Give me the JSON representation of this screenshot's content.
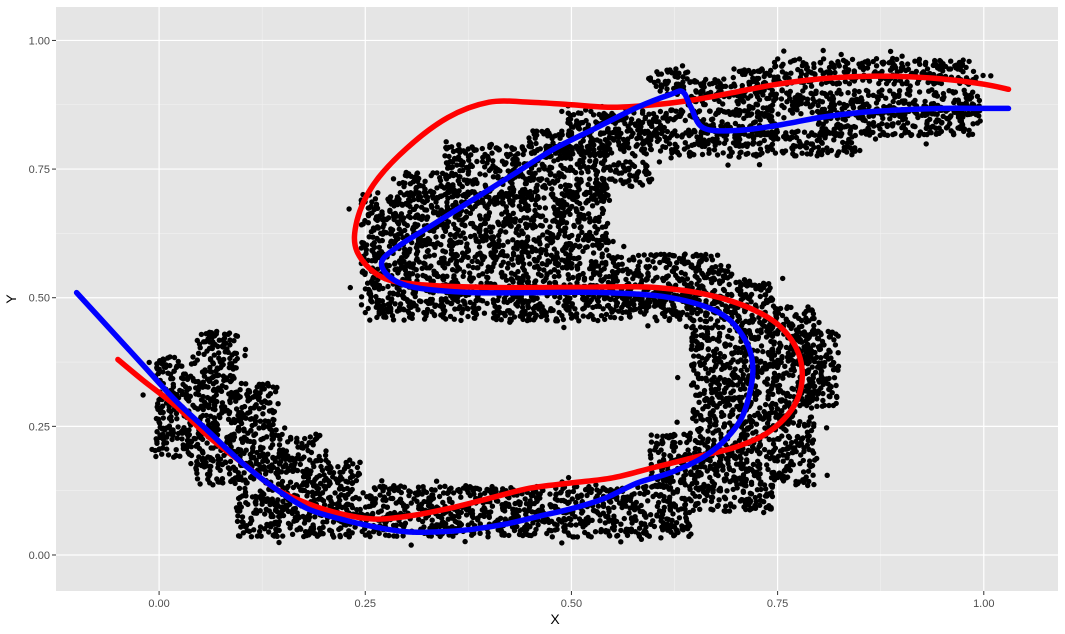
{
  "chart_data": {
    "type": "scatter",
    "title": "",
    "xlabel": "X",
    "ylabel": "Y",
    "xlim": [
      -0.125,
      1.09
    ],
    "ylim": [
      -0.07,
      1.065
    ],
    "x_ticks": [
      0.0,
      0.25,
      0.5,
      0.75,
      1.0
    ],
    "x_tick_labels": [
      "0.00",
      "0.25",
      "0.50",
      "0.75",
      "1.00"
    ],
    "y_ticks": [
      0.0,
      0.25,
      0.5,
      0.75,
      1.0
    ],
    "y_tick_labels": [
      "0.00",
      "0.25",
      "0.50",
      "0.75",
      "1.00"
    ],
    "grid": true,
    "legend": "none",
    "points": {
      "name": "",
      "color": "#000000",
      "description_cells": "jittered point clusters on a 0.05 grid tracing an S shape",
      "cells": [
        [
          0.62,
          0.92
        ],
        [
          0.67,
          0.9
        ],
        [
          0.72,
          0.92
        ],
        [
          0.77,
          0.94
        ],
        [
          0.82,
          0.94
        ],
        [
          0.87,
          0.94
        ],
        [
          0.92,
          0.94
        ],
        [
          0.97,
          0.94
        ],
        [
          0.72,
          0.88
        ],
        [
          0.77,
          0.88
        ],
        [
          0.82,
          0.88
        ],
        [
          0.87,
          0.88
        ],
        [
          0.92,
          0.88
        ],
        [
          0.97,
          0.88
        ],
        [
          0.82,
          0.84
        ],
        [
          0.87,
          0.84
        ],
        [
          0.92,
          0.84
        ],
        [
          0.97,
          0.84
        ],
        [
          0.52,
          0.84
        ],
        [
          0.57,
          0.84
        ],
        [
          0.62,
          0.84
        ],
        [
          0.67,
          0.84
        ],
        [
          0.72,
          0.84
        ],
        [
          0.47,
          0.8
        ],
        [
          0.52,
          0.8
        ],
        [
          0.57,
          0.8
        ],
        [
          0.62,
          0.8
        ],
        [
          0.67,
          0.8
        ],
        [
          0.72,
          0.8
        ],
        [
          0.77,
          0.8
        ],
        [
          0.82,
          0.8
        ],
        [
          0.37,
          0.77
        ],
        [
          0.42,
          0.77
        ],
        [
          0.47,
          0.77
        ],
        [
          0.52,
          0.77
        ],
        [
          0.57,
          0.74
        ],
        [
          0.32,
          0.72
        ],
        [
          0.37,
          0.72
        ],
        [
          0.42,
          0.72
        ],
        [
          0.47,
          0.72
        ],
        [
          0.52,
          0.72
        ],
        [
          0.27,
          0.68
        ],
        [
          0.32,
          0.68
        ],
        [
          0.37,
          0.68
        ],
        [
          0.42,
          0.68
        ],
        [
          0.47,
          0.68
        ],
        [
          0.52,
          0.68
        ],
        [
          0.27,
          0.63
        ],
        [
          0.32,
          0.63
        ],
        [
          0.37,
          0.63
        ],
        [
          0.42,
          0.63
        ],
        [
          0.47,
          0.63
        ],
        [
          0.52,
          0.63
        ],
        [
          0.27,
          0.58
        ],
        [
          0.32,
          0.58
        ],
        [
          0.37,
          0.58
        ],
        [
          0.42,
          0.58
        ],
        [
          0.47,
          0.58
        ],
        [
          0.52,
          0.58
        ],
        [
          0.57,
          0.56
        ],
        [
          0.62,
          0.56
        ],
        [
          0.67,
          0.56
        ],
        [
          0.27,
          0.53
        ],
        [
          0.32,
          0.53
        ],
        [
          0.37,
          0.53
        ],
        [
          0.42,
          0.53
        ],
        [
          0.47,
          0.53
        ],
        [
          0.52,
          0.53
        ],
        [
          0.57,
          0.51
        ],
        [
          0.62,
          0.51
        ],
        [
          0.67,
          0.51
        ],
        [
          0.72,
          0.51
        ],
        [
          0.27,
          0.48
        ],
        [
          0.32,
          0.48
        ],
        [
          0.37,
          0.48
        ],
        [
          0.42,
          0.48
        ],
        [
          0.47,
          0.48
        ],
        [
          0.52,
          0.48
        ],
        [
          0.57,
          0.48
        ],
        [
          0.62,
          0.48
        ],
        [
          0.67,
          0.46
        ],
        [
          0.72,
          0.46
        ],
        [
          0.77,
          0.46
        ],
        [
          0.67,
          0.41
        ],
        [
          0.72,
          0.41
        ],
        [
          0.77,
          0.41
        ],
        [
          0.8,
          0.41
        ],
        [
          0.67,
          0.36
        ],
        [
          0.72,
          0.36
        ],
        [
          0.77,
          0.36
        ],
        [
          0.8,
          0.36
        ],
        [
          0.67,
          0.31
        ],
        [
          0.72,
          0.31
        ],
        [
          0.77,
          0.31
        ],
        [
          0.8,
          0.31
        ],
        [
          0.67,
          0.26
        ],
        [
          0.72,
          0.26
        ],
        [
          0.77,
          0.26
        ],
        [
          0.67,
          0.21
        ],
        [
          0.72,
          0.21
        ],
        [
          0.77,
          0.21
        ],
        [
          0.62,
          0.21
        ],
        [
          0.62,
          0.16
        ],
        [
          0.67,
          0.16
        ],
        [
          0.72,
          0.16
        ],
        [
          0.77,
          0.16
        ],
        [
          0.62,
          0.11
        ],
        [
          0.67,
          0.11
        ],
        [
          0.72,
          0.11
        ],
        [
          0.57,
          0.11
        ],
        [
          0.52,
          0.11
        ],
        [
          0.47,
          0.11
        ],
        [
          0.42,
          0.11
        ],
        [
          0.37,
          0.11
        ],
        [
          0.32,
          0.11
        ],
        [
          0.27,
          0.11
        ],
        [
          0.22,
          0.11
        ],
        [
          0.62,
          0.06
        ],
        [
          0.57,
          0.06
        ],
        [
          0.52,
          0.06
        ],
        [
          0.47,
          0.06
        ],
        [
          0.42,
          0.06
        ],
        [
          0.37,
          0.06
        ],
        [
          0.32,
          0.06
        ],
        [
          0.27,
          0.06
        ],
        [
          0.22,
          0.06
        ],
        [
          0.17,
          0.06
        ],
        [
          0.12,
          0.06
        ],
        [
          0.17,
          0.11
        ],
        [
          0.12,
          0.11
        ],
        [
          0.17,
          0.16
        ],
        [
          0.12,
          0.16
        ],
        [
          0.07,
          0.16
        ],
        [
          0.22,
          0.16
        ],
        [
          0.17,
          0.21
        ],
        [
          0.12,
          0.21
        ],
        [
          0.07,
          0.21
        ],
        [
          0.02,
          0.21
        ],
        [
          0.12,
          0.26
        ],
        [
          0.07,
          0.26
        ],
        [
          0.02,
          0.26
        ],
        [
          0.12,
          0.31
        ],
        [
          0.07,
          0.31
        ],
        [
          0.02,
          0.31
        ],
        [
          0.07,
          0.36
        ],
        [
          0.02,
          0.36
        ],
        [
          0.07,
          0.41
        ]
      ]
    },
    "series": [
      {
        "name": "",
        "color": "#ff0000",
        "x": [
          -0.05,
          -0.02,
          0.02,
          0.06,
          0.1,
          0.14,
          0.18,
          0.22,
          0.26,
          0.3,
          0.35,
          0.4,
          0.45,
          0.5,
          0.55,
          0.6,
          0.65,
          0.7,
          0.74,
          0.77,
          0.78,
          0.77,
          0.74,
          0.68,
          0.6,
          0.5,
          0.4,
          0.32,
          0.27,
          0.24,
          0.24,
          0.26,
          0.3,
          0.35,
          0.4,
          0.45,
          0.5,
          0.55,
          0.6,
          0.65,
          0.7,
          0.75,
          0.8,
          0.85,
          0.9,
          0.95,
          1.0,
          1.03
        ],
        "y": [
          0.38,
          0.34,
          0.29,
          0.23,
          0.18,
          0.13,
          0.1,
          0.08,
          0.07,
          0.075,
          0.09,
          0.11,
          0.13,
          0.14,
          0.15,
          0.17,
          0.19,
          0.21,
          0.24,
          0.29,
          0.35,
          0.41,
          0.46,
          0.5,
          0.52,
          0.52,
          0.52,
          0.525,
          0.54,
          0.59,
          0.65,
          0.72,
          0.79,
          0.85,
          0.88,
          0.88,
          0.875,
          0.87,
          0.875,
          0.885,
          0.9,
          0.915,
          0.925,
          0.93,
          0.93,
          0.925,
          0.915,
          0.905
        ]
      },
      {
        "name": "",
        "color": "#0000ff",
        "x": [
          -0.1,
          -0.06,
          -0.02,
          0.02,
          0.06,
          0.1,
          0.14,
          0.18,
          0.22,
          0.26,
          0.3,
          0.34,
          0.38,
          0.42,
          0.46,
          0.5,
          0.54,
          0.58,
          0.62,
          0.66,
          0.69,
          0.71,
          0.72,
          0.71,
          0.68,
          0.62,
          0.54,
          0.46,
          0.38,
          0.31,
          0.28,
          0.27,
          0.29,
          0.33,
          0.38,
          0.43,
          0.48,
          0.53,
          0.58,
          0.62,
          0.635,
          0.645,
          0.66,
          0.7,
          0.75,
          0.8,
          0.85,
          0.9,
          0.95,
          1.0,
          1.03
        ],
        "y": [
          0.51,
          0.44,
          0.37,
          0.3,
          0.24,
          0.18,
          0.13,
          0.09,
          0.07,
          0.055,
          0.045,
          0.045,
          0.05,
          0.06,
          0.075,
          0.09,
          0.11,
          0.14,
          0.16,
          0.19,
          0.23,
          0.28,
          0.36,
          0.42,
          0.47,
          0.5,
          0.51,
          0.51,
          0.51,
          0.52,
          0.54,
          0.57,
          0.6,
          0.64,
          0.69,
          0.74,
          0.79,
          0.83,
          0.87,
          0.895,
          0.9,
          0.87,
          0.83,
          0.825,
          0.835,
          0.85,
          0.86,
          0.865,
          0.868,
          0.868,
          0.868
        ]
      }
    ]
  }
}
